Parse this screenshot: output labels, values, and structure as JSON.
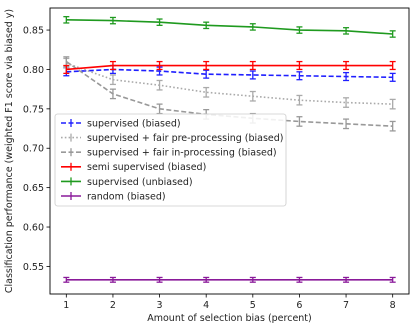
{
  "chart_data": {
    "type": "line",
    "xlabel": "Amount of selection bias (percent)",
    "ylabel": "Classification performance (weighted F1 score via biased y)",
    "x": [
      1,
      2,
      3,
      4,
      5,
      6,
      7,
      8
    ],
    "xticks": [
      "1",
      "2",
      "3",
      "4",
      "5",
      "6",
      "7",
      "8"
    ],
    "yticks": [
      0.55,
      0.6,
      0.65,
      0.7,
      0.75,
      0.8,
      0.85
    ],
    "ytick_labels": [
      "0.55",
      "0.60",
      "0.65",
      "0.70",
      "0.75",
      "0.80",
      "0.85"
    ],
    "xlim": [
      0.65,
      8.35
    ],
    "ylim": [
      0.515,
      0.878
    ],
    "grid": false,
    "legend_position": "center-left",
    "series": [
      {
        "name": "supervised (biased)",
        "color": "#1f1fff",
        "dash": "dashed",
        "values": [
          0.797,
          0.8,
          0.798,
          0.794,
          0.793,
          0.792,
          0.791,
          0.79
        ],
        "err": 0.005
      },
      {
        "name": "supervised + fair pre-processing (biased)",
        "color": "#aaaaaa",
        "dash": "dotted",
        "values": [
          0.808,
          0.787,
          0.78,
          0.771,
          0.766,
          0.761,
          0.758,
          0.756
        ],
        "err": 0.006
      },
      {
        "name": "supervised + fair in-processing (biased)",
        "color": "#999999",
        "dash": "dashed",
        "values": [
          0.81,
          0.769,
          0.75,
          0.743,
          0.738,
          0.734,
          0.731,
          0.728
        ],
        "err": 0.006
      },
      {
        "name": "semi supervised (biased)",
        "color": "#ff0000",
        "dash": "solid",
        "values": [
          0.8,
          0.805,
          0.805,
          0.805,
          0.805,
          0.805,
          0.805,
          0.805
        ],
        "err": 0.005
      },
      {
        "name": "supervised (unbiased)",
        "color": "#1f9a1f",
        "dash": "solid",
        "values": [
          0.863,
          0.862,
          0.86,
          0.856,
          0.854,
          0.85,
          0.849,
          0.845
        ],
        "err": 0.004
      },
      {
        "name": "random (biased)",
        "color": "#8a1a9a",
        "dash": "solid",
        "values": [
          0.533,
          0.533,
          0.533,
          0.533,
          0.533,
          0.533,
          0.533,
          0.533
        ],
        "err": 0.003
      }
    ]
  }
}
